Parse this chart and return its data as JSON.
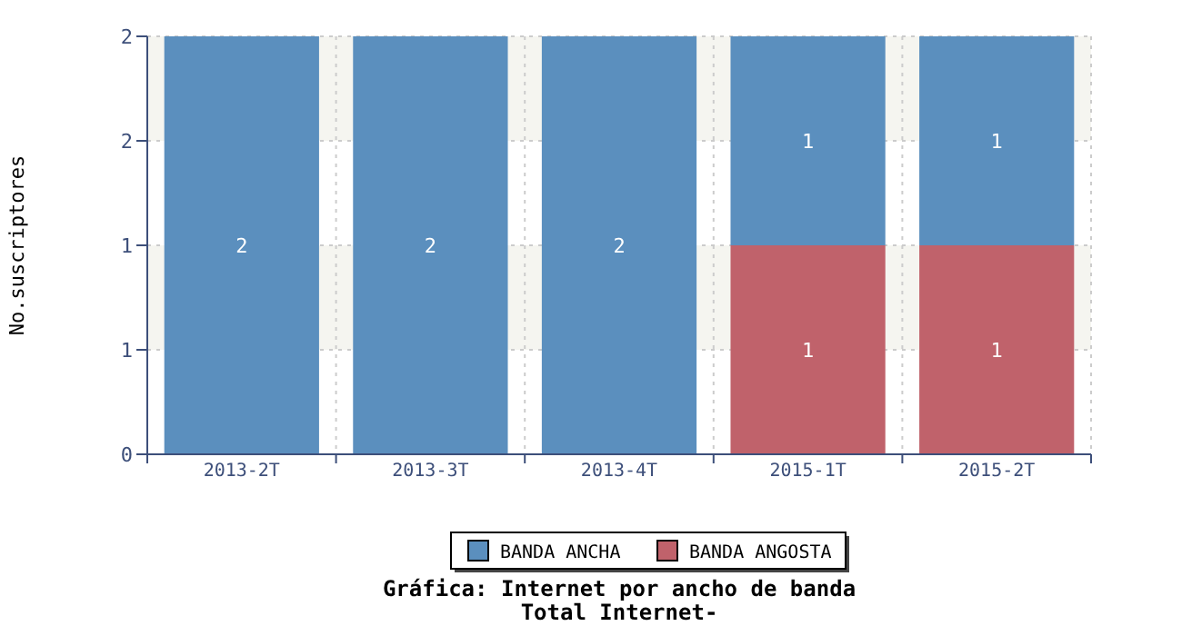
{
  "chart_data": {
    "type": "bar",
    "stacked": true,
    "title": "Gráfica: Internet por ancho de banda",
    "subtitle": "Total Internet-",
    "ylabel": "No.suscriptores",
    "categories": [
      "2013-2T",
      "2013-3T",
      "2013-4T",
      "2015-1T",
      "2015-2T"
    ],
    "series": [
      {
        "name": "BANDA ANGOSTA",
        "color": "#c0626b",
        "values": [
          null,
          null,
          null,
          1,
          1
        ]
      },
      {
        "name": "BANDA ANCHA",
        "color": "#5b8fbe",
        "values": [
          2,
          2,
          2,
          1,
          1
        ]
      }
    ],
    "ylim": [
      0,
      2
    ],
    "yticks": [
      0,
      {
        "value": 0.5,
        "label": "1"
      },
      1,
      {
        "value": 1.5,
        "label": "2"
      },
      2
    ],
    "grid": true,
    "legend": "bottom",
    "data_labels": true
  }
}
